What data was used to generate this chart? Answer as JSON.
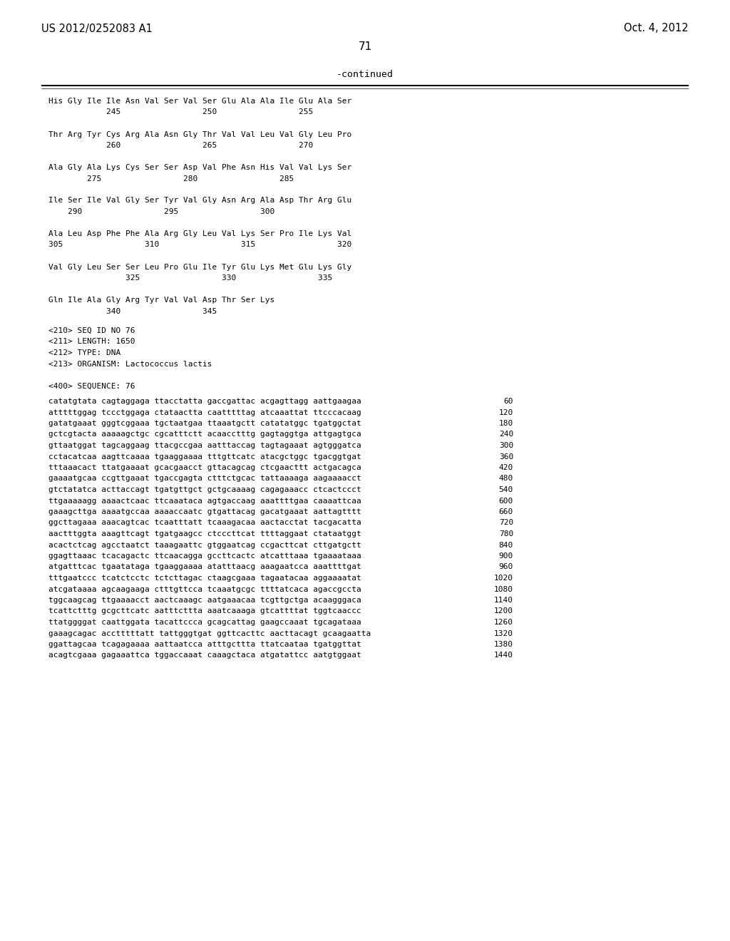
{
  "background_color": "#ffffff",
  "header_left": "US 2012/0252083 A1",
  "header_right": "Oct. 4, 2012",
  "page_number": "71",
  "continued_label": "-continued",
  "header_fontsize": 10.5,
  "body_fontsize": 8.0,
  "page_num_fontsize": 11,
  "continued_fontsize": 9.5,
  "protein_lines": [
    "His Gly Ile Ile Asn Val Ser Val Ser Glu Ala Ala Ile Glu Ala Ser",
    "            245                 250                 255",
    "",
    "Thr Arg Tyr Cys Arg Ala Asn Gly Thr Val Val Leu Val Gly Leu Pro",
    "            260                 265                 270",
    "",
    "Ala Gly Ala Lys Cys Ser Ser Asp Val Phe Asn His Val Val Lys Ser",
    "        275                 280                 285",
    "",
    "Ile Ser Ile Val Gly Ser Tyr Val Gly Asn Arg Ala Asp Thr Arg Glu",
    "    290                 295                 300",
    "",
    "Ala Leu Asp Phe Phe Ala Arg Gly Leu Val Lys Ser Pro Ile Lys Val",
    "305                 310                 315                 320",
    "",
    "Val Gly Leu Ser Ser Leu Pro Glu Ile Tyr Glu Lys Met Glu Lys Gly",
    "                325                 330                 335",
    "",
    "Gln Ile Ala Gly Arg Tyr Val Val Asp Thr Ser Lys",
    "            340                 345"
  ],
  "seq_info": [
    "<210> SEQ ID NO 76",
    "<211> LENGTH: 1650",
    "<212> TYPE: DNA",
    "<213> ORGANISM: Lactococcus lactis",
    "",
    "<400> SEQUENCE: 76"
  ],
  "dna_lines": [
    [
      "catatgtata cagtaggaga ttacctatta gaccgattac acgagttagg aattgaagaa",
      "60"
    ],
    [
      "atttttggag tccctggaga ctataactta caatttttag atcaaattat ttcccacaag",
      "120"
    ],
    [
      "gatatgaaat gggtcggaaa tgctaatgaa ttaaatgctt catatatggc tgatggctat",
      "180"
    ],
    [
      "gctcgtacta aaaaagctgc cgcatttctt acaacctttg gagtaggtga attgagtgca",
      "240"
    ],
    [
      "gttaatggat tagcaggaag ttacgccgaa aatttaccag tagtagaaat agtgggatca",
      "300"
    ],
    [
      "cctacatcaa aagttcaaaa tgaaggaaaa tttgttcatc atacgctggc tgacggtgat",
      "360"
    ],
    [
      "tttaaacact ttatgaaaat gcacgaacct gttacagcag ctcgaacttt actgacagca",
      "420"
    ],
    [
      "gaaaatgcaa ccgttgaaat tgaccgagta ctttctgcac tattaaaaga aagaaaacct",
      "480"
    ],
    [
      "gtctatatca acttaccagt tgatgttgct gctgcaaaag cagagaaacc ctcactccct",
      "540"
    ],
    [
      "ttgaaaaagg aaaactcaac ttcaaataca agtgaccaag aaattttgaa caaaattcaa",
      "600"
    ],
    [
      "gaaagcttga aaaatgccaa aaaaccaatc gtgattacag gacatgaaat aattagtttt",
      "660"
    ],
    [
      "ggcttagaaa aaacagtcac tcaatttatt tcaaagacaa aactacctat tacgacatta",
      "720"
    ],
    [
      "aactttggta aaagttcagt tgatgaagcc ctcccttcat ttttaggaat ctataatggt",
      "780"
    ],
    [
      "acactctcag agcctaatct taaagaattc gtggaatcag ccgacttcat cttgatgctt",
      "840"
    ],
    [
      "ggagttaaac tcacagactc ttcaacagga gccttcactc atcatttaaa tgaaaataaa",
      "900"
    ],
    [
      "atgatttcac tgaatataga tgaaggaaaa atatttaacg aaagaatcca aaattttgat",
      "960"
    ],
    [
      "tttgaatccc tcatctcctc tctcttagac ctaagcgaaa tagaatacaa aggaaaatat",
      "1020"
    ],
    [
      "atcgataaaa agcaagaaga ctttgttcca tcaaatgcgc ttttatcaca agaccgccta",
      "1080"
    ],
    [
      "tggcaagcag ttgaaaacct aactcaaagc aatgaaacaa tcgttgctga acaagggaca",
      "1140"
    ],
    [
      "tcattctttg gcgcttcatc aatttcttta aaatcaaaga gtcattttat tggtcaaccc",
      "1200"
    ],
    [
      "ttatggggat caattggata tacattccca gcagcattag gaagccaaat tgcagataaa",
      "1260"
    ],
    [
      "gaaagcagac acctttttatt tattgggtgat ggttcacttc aacttacagt gcaagaatta",
      "1320"
    ],
    [
      "ggattagcaa tcagagaaaa aattaatcca atttgcttta ttatcaataa tgatggttat",
      "1380"
    ],
    [
      "acagtcgaaa gagaaattca tggaccaaat caaagctaca atgatattcc aatgtggaat",
      "1440"
    ]
  ]
}
